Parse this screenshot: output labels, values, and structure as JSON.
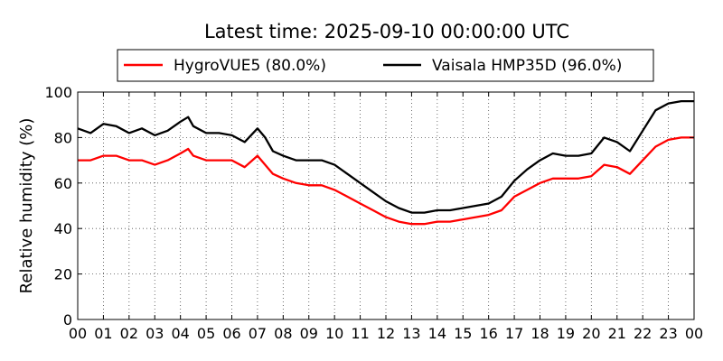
{
  "chart_data": {
    "type": "line",
    "title": "Latest time: 2025-09-10 00:00:00 UTC",
    "ylabel": "Relative humidity (%)",
    "xlabel": "",
    "ylim": [
      0,
      100
    ],
    "xlim": [
      0,
      24
    ],
    "yticks": [
      "0",
      "20",
      "40",
      "60",
      "80",
      "100"
    ],
    "xticks": [
      "00",
      "01",
      "02",
      "03",
      "04",
      "05",
      "06",
      "07",
      "08",
      "09",
      "10",
      "11",
      "12",
      "13",
      "14",
      "15",
      "16",
      "17",
      "18",
      "19",
      "20",
      "21",
      "22",
      "23",
      "00"
    ],
    "grid": true,
    "legend_position": "top-center",
    "series": [
      {
        "name": "HygroVUE5 (80.0%)",
        "color": "#ff0000",
        "x": [
          0,
          0.5,
          1,
          1.5,
          2,
          2.5,
          3,
          3.5,
          4,
          4.3,
          4.5,
          5,
          5.5,
          6,
          6.5,
          7,
          7.3,
          7.6,
          8,
          8.5,
          9,
          9.5,
          10,
          10.5,
          11,
          11.5,
          12,
          12.5,
          13,
          13.5,
          14,
          14.5,
          15,
          15.5,
          16,
          16.5,
          17,
          17.5,
          18,
          18.5,
          19,
          19.5,
          20,
          20.5,
          21,
          21.5,
          22,
          22.5,
          23,
          23.5,
          24
        ],
        "values": [
          70,
          70,
          72,
          72,
          70,
          70,
          68,
          70,
          73,
          75,
          72,
          70,
          70,
          70,
          67,
          72,
          68,
          64,
          62,
          60,
          59,
          59,
          57,
          54,
          51,
          48,
          45,
          43,
          42,
          42,
          43,
          43,
          44,
          45,
          46,
          48,
          54,
          57,
          60,
          62,
          62,
          62,
          63,
          68,
          67,
          64,
          70,
          76,
          79,
          80,
          80
        ]
      },
      {
        "name": "Vaisala HMP35D (96.0%)",
        "color": "#000000",
        "x": [
          0,
          0.5,
          1,
          1.5,
          2,
          2.5,
          3,
          3.5,
          4,
          4.3,
          4.5,
          5,
          5.5,
          6,
          6.5,
          7,
          7.3,
          7.6,
          8,
          8.5,
          9,
          9.5,
          10,
          10.5,
          11,
          11.5,
          12,
          12.5,
          13,
          13.5,
          14,
          14.5,
          15,
          15.5,
          16,
          16.5,
          17,
          17.5,
          18,
          18.5,
          19,
          19.5,
          20,
          20.5,
          21,
          21.5,
          22,
          22.5,
          23,
          23.5,
          24
        ],
        "values": [
          84,
          82,
          86,
          85,
          82,
          84,
          81,
          83,
          87,
          89,
          85,
          82,
          82,
          81,
          78,
          84,
          80,
          74,
          72,
          70,
          70,
          70,
          68,
          64,
          60,
          56,
          52,
          49,
          47,
          47,
          48,
          48,
          49,
          50,
          51,
          54,
          61,
          66,
          70,
          73,
          72,
          72,
          73,
          80,
          78,
          74,
          83,
          92,
          95,
          96,
          96
        ]
      }
    ]
  }
}
